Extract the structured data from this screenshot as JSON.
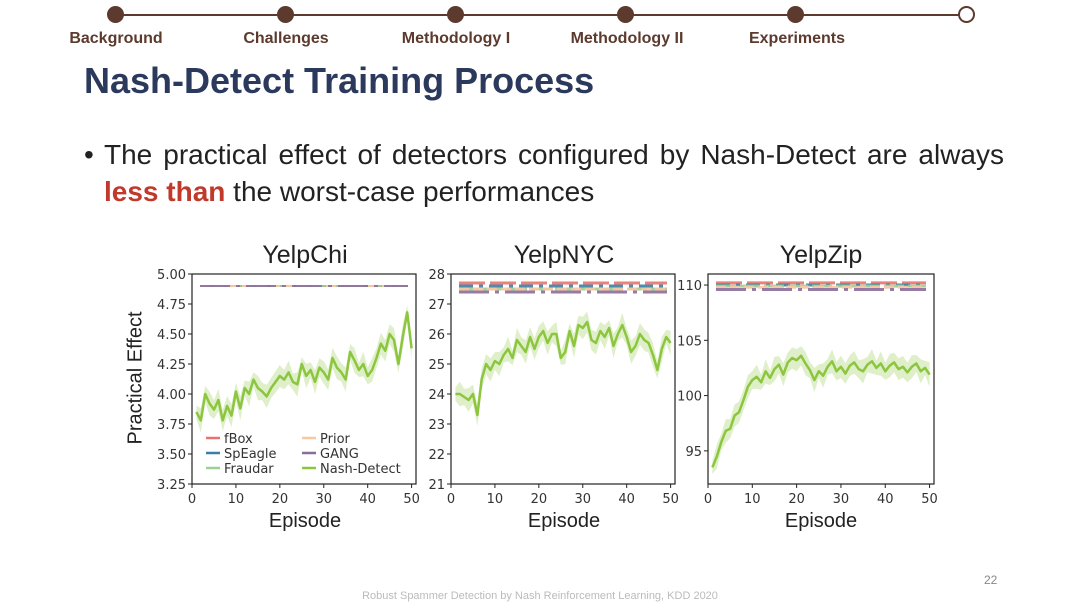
{
  "nav": {
    "items": [
      "Background",
      "Challenges",
      "Methodology I",
      "Methodology II",
      "Experiments"
    ]
  },
  "title": "Nash-Detect Training Process",
  "bullet": {
    "before": "The practical effect of detectors configured by Nash-Detect are always ",
    "highlight": "less than",
    "after": " the worst-case performances"
  },
  "footer": "Robust Spammer Detection by Nash Reinforcement Learning, KDD 2020",
  "page_number": "22",
  "colors": {
    "nav": "#5c3a2e",
    "title": "#2b3a5c",
    "highlight": "#c0392b",
    "fBox": "#e8736c",
    "SpEagle": "#3b7fa6",
    "Fraudar": "#9ecf94",
    "Prior": "#f6c9a0",
    "GANG": "#8b6d9c",
    "Nash-Detect": "#8cc63f"
  },
  "chart_data": [
    {
      "type": "line",
      "title": "YelpChi",
      "xlabel": "Episode",
      "ylabel": "Practical Effect",
      "xlim": [
        0,
        51
      ],
      "ylim": [
        3.25,
        5.0
      ],
      "xticks": [
        "0",
        "10",
        "20",
        "30",
        "40",
        "50"
      ],
      "yticks": [
        "3.25",
        "3.50",
        "3.75",
        "4.00",
        "4.25",
        "4.50",
        "4.75",
        "5.00"
      ],
      "legend": {
        "placement": "lower-left",
        "entries": [
          "fBox",
          "Prior",
          "SpEagle",
          "GANG",
          "Fraudar",
          "Nash-Detect"
        ]
      },
      "series": [
        {
          "name": "fBox",
          "values": [
            4.9
          ]
        },
        {
          "name": "SpEagle",
          "values": [
            4.9
          ]
        },
        {
          "name": "Fraudar",
          "values": [
            4.9
          ]
        },
        {
          "name": "Prior",
          "values": [
            4.9
          ]
        },
        {
          "name": "GANG",
          "values": [
            4.9
          ]
        },
        {
          "name": "Nash-Detect",
          "x": [
            1,
            2,
            3,
            4,
            5,
            6,
            7,
            8,
            9,
            10,
            11,
            12,
            13,
            14,
            15,
            16,
            17,
            18,
            19,
            20,
            21,
            22,
            23,
            24,
            25,
            26,
            27,
            28,
            29,
            30,
            31,
            32,
            33,
            34,
            35,
            36,
            37,
            38,
            39,
            40,
            41,
            42,
            43,
            44,
            45,
            46,
            47,
            48,
            49,
            50
          ],
          "values": [
            3.85,
            3.78,
            4.0,
            3.92,
            3.87,
            3.95,
            3.78,
            3.9,
            3.82,
            4.02,
            3.88,
            4.05,
            4.0,
            4.12,
            4.05,
            4.02,
            3.98,
            4.05,
            4.1,
            4.15,
            4.12,
            4.18,
            4.1,
            4.08,
            4.25,
            4.15,
            4.2,
            4.1,
            4.22,
            4.18,
            4.12,
            4.3,
            4.22,
            4.18,
            4.12,
            4.35,
            4.28,
            4.2,
            4.25,
            4.15,
            4.2,
            4.3,
            4.42,
            4.36,
            4.5,
            4.45,
            4.25,
            4.48,
            4.68,
            4.38
          ]
        }
      ]
    },
    {
      "type": "line",
      "title": "YelpNYC",
      "xlabel": "Episode",
      "xlim": [
        0,
        51
      ],
      "ylim": [
        21,
        28
      ],
      "xticks": [
        "0",
        "10",
        "20",
        "30",
        "40",
        "50"
      ],
      "yticks": [
        "21",
        "22",
        "23",
        "24",
        "25",
        "26",
        "27",
        "28"
      ],
      "series": [
        {
          "name": "fBox",
          "values": [
            27.7
          ]
        },
        {
          "name": "SpEagle",
          "values": [
            27.6
          ]
        },
        {
          "name": "Fraudar",
          "values": [
            27.5
          ]
        },
        {
          "name": "Prior",
          "values": [
            27.5
          ]
        },
        {
          "name": "GANG",
          "values": [
            27.4
          ]
        },
        {
          "name": "Nash-Detect",
          "x": [
            1,
            2,
            3,
            4,
            5,
            6,
            7,
            8,
            9,
            10,
            11,
            12,
            13,
            14,
            15,
            16,
            17,
            18,
            19,
            20,
            21,
            22,
            23,
            24,
            25,
            26,
            27,
            28,
            29,
            30,
            31,
            32,
            33,
            34,
            35,
            36,
            37,
            38,
            39,
            40,
            41,
            42,
            43,
            44,
            45,
            46,
            47,
            48,
            49,
            50
          ],
          "values": [
            24.0,
            24.0,
            23.9,
            23.8,
            24.0,
            23.3,
            24.5,
            25.0,
            24.8,
            25.1,
            25.0,
            25.3,
            25.5,
            25.2,
            25.8,
            25.6,
            25.4,
            25.9,
            25.5,
            25.9,
            26.1,
            25.7,
            26.0,
            26.0,
            25.2,
            25.4,
            26.1,
            25.6,
            26.3,
            26.2,
            26.4,
            25.8,
            25.7,
            26.1,
            25.9,
            26.2,
            25.6,
            26.0,
            26.3,
            25.9,
            25.4,
            25.6,
            26.0,
            25.8,
            25.7,
            25.3,
            24.8,
            25.5,
            25.9,
            25.7
          ]
        }
      ]
    },
    {
      "type": "line",
      "title": "YelpZip",
      "xlabel": "Episode",
      "xlim": [
        0,
        51
      ],
      "ylim": [
        92,
        111
      ],
      "xticks": [
        "0",
        "10",
        "20",
        "30",
        "40",
        "50"
      ],
      "yticks": [
        "95",
        "100",
        "105",
        "110"
      ],
      "series": [
        {
          "name": "fBox",
          "values": [
            110.2
          ]
        },
        {
          "name": "SpEagle",
          "values": [
            110.0
          ]
        },
        {
          "name": "Fraudar",
          "values": [
            109.9
          ]
        },
        {
          "name": "Prior",
          "values": [
            109.8
          ]
        },
        {
          "name": "GANG",
          "values": [
            109.6
          ]
        },
        {
          "name": "Nash-Detect",
          "x": [
            1,
            2,
            3,
            4,
            5,
            6,
            7,
            8,
            9,
            10,
            11,
            12,
            13,
            14,
            15,
            16,
            17,
            18,
            19,
            20,
            21,
            22,
            23,
            24,
            25,
            26,
            27,
            28,
            29,
            30,
            31,
            32,
            33,
            34,
            35,
            36,
            37,
            38,
            39,
            40,
            41,
            42,
            43,
            44,
            45,
            46,
            47,
            48,
            49,
            50
          ],
          "values": [
            93.5,
            94.5,
            95.8,
            96.8,
            97.0,
            98.2,
            98.5,
            99.6,
            100.8,
            101.4,
            101.7,
            101.2,
            102.2,
            101.6,
            102.4,
            102.8,
            101.9,
            103.0,
            103.4,
            103.2,
            103.6,
            102.9,
            102.3,
            101.4,
            102.2,
            101.8,
            102.6,
            103.1,
            102.2,
            102.6,
            102.0,
            102.7,
            103.0,
            102.4,
            102.2,
            102.8,
            103.1,
            102.5,
            102.9,
            102.2,
            102.7,
            103.0,
            102.4,
            102.6,
            102.1,
            102.6,
            102.9,
            102.2,
            102.5,
            101.9
          ]
        }
      ]
    }
  ]
}
